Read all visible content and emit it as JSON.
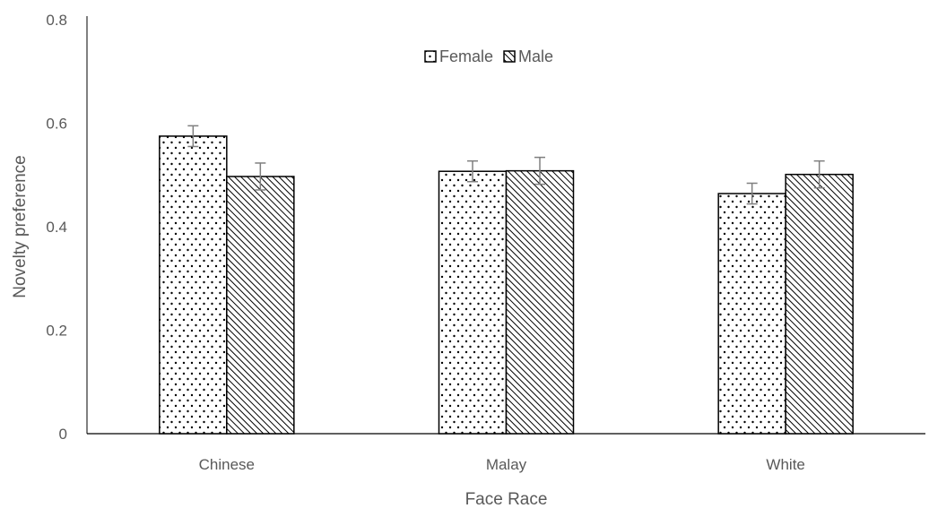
{
  "chart_data": {
    "type": "bar",
    "title": "",
    "xlabel": "Face Race",
    "ylabel": "Novelty preference",
    "ylim": [
      0,
      0.8
    ],
    "yticks": [
      "0",
      "0.2",
      "0.4",
      "0.6",
      "0.8"
    ],
    "categories": [
      "Chinese",
      "Malay",
      "White"
    ],
    "series": [
      {
        "name": "Female",
        "values": [
          0.575,
          0.507,
          0.464
        ],
        "errors": [
          0.02,
          0.02,
          0.02
        ],
        "pattern": "dots"
      },
      {
        "name": "Male",
        "values": [
          0.497,
          0.508,
          0.501
        ],
        "errors": [
          0.026,
          0.026,
          0.026
        ],
        "pattern": "diagonal"
      }
    ],
    "grid": false,
    "legend_position": "top-center",
    "colors": {
      "bar_stroke": "#000000",
      "bar_fill": "#ffffff",
      "axis": "#000000",
      "text": "#595959",
      "error_bar": "#7f7f7f"
    }
  }
}
